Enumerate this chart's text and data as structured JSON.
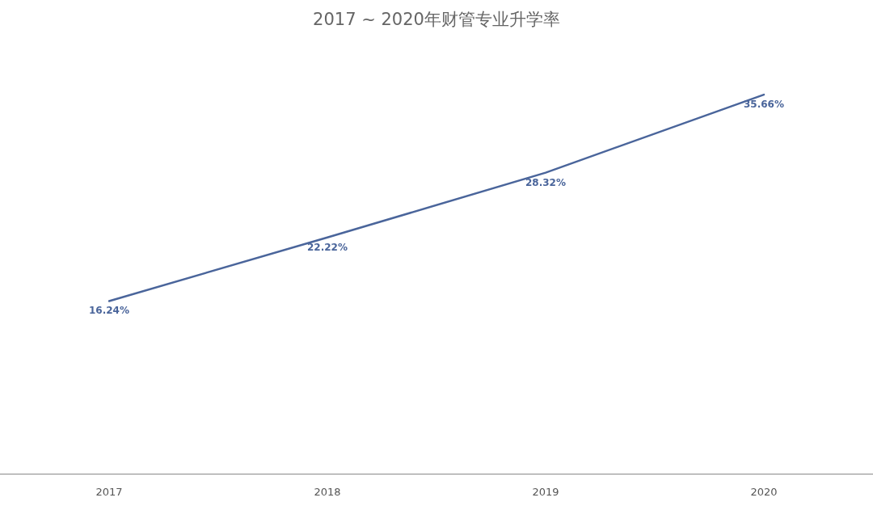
{
  "chart_data": {
    "type": "line",
    "title": "2017 ~ 2020年财管专业升学率",
    "categories": [
      "2017",
      "2018",
      "2019",
      "2020"
    ],
    "series": [
      {
        "color": "#4a659b",
        "values": [
          16.24,
          22.22,
          28.32,
          35.66
        ],
        "value_labels": [
          "16.24%",
          "22.22%",
          "28.32%",
          "35.66%"
        ]
      }
    ],
    "tick_labels": "x",
    "grid": false,
    "marker": "none",
    "line_style": "solid"
  }
}
